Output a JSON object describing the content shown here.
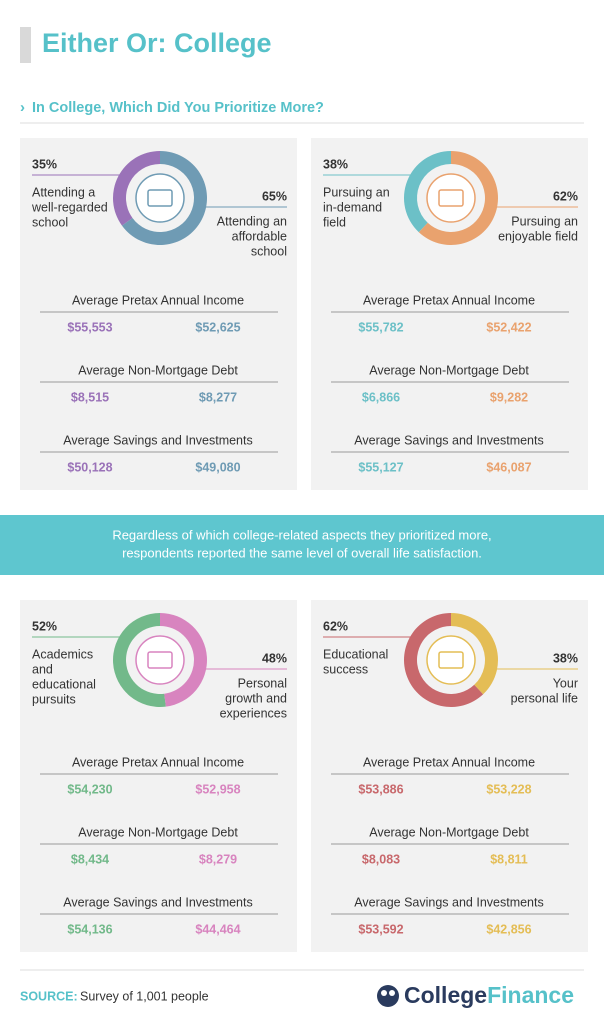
{
  "title": "Either Or: College",
  "subtitle": "In College, Which Did You Prioritize More?",
  "panels": [
    {
      "type": "pie",
      "slices": [
        {
          "value": 35,
          "value_label": "35%",
          "lines": [
            "Attending a",
            "well-regarded",
            "school"
          ],
          "color": "#9a72b8"
        },
        {
          "value": 65,
          "value_label": "65%",
          "lines": [
            "Attending an",
            "affordable",
            "school"
          ],
          "color": "#6f9bb4"
        }
      ],
      "metrics": [
        {
          "label": "Average Pretax Annual Income",
          "values": [
            "$55,553",
            "$52,625"
          ]
        },
        {
          "label": "Average Non-Mortgage Debt",
          "values": [
            "$8,515",
            "$8,277"
          ]
        },
        {
          "label": "Average Savings and Investments",
          "values": [
            "$50,128",
            "$49,080"
          ]
        }
      ]
    },
    {
      "type": "pie",
      "slices": [
        {
          "value": 38,
          "value_label": "38%",
          "lines": [
            "Pursuing an",
            "in-demand",
            "field"
          ],
          "color": "#6cc0c7"
        },
        {
          "value": 62,
          "value_label": "62%",
          "lines": [
            "Pursuing an",
            "enjoyable field"
          ],
          "color": "#e9a26e"
        }
      ],
      "metrics": [
        {
          "label": "Average Pretax Annual Income",
          "values": [
            "$55,782",
            "$52,422"
          ]
        },
        {
          "label": "Average Non-Mortgage Debt",
          "values": [
            "$6,866",
            "$9,282"
          ]
        },
        {
          "label": "Average Savings and Investments",
          "values": [
            "$55,127",
            "$46,087"
          ]
        }
      ]
    },
    {
      "type": "pie",
      "slices": [
        {
          "value": 52,
          "value_label": "52%",
          "lines": [
            "Academics",
            "and",
            "educational",
            "pursuits"
          ],
          "color": "#72b98a"
        },
        {
          "value": 48,
          "value_label": "48%",
          "lines": [
            "Personal",
            "growth and",
            "experiences"
          ],
          "color": "#d884bf"
        }
      ],
      "metrics": [
        {
          "label": "Average Pretax Annual Income",
          "values": [
            "$54,230",
            "$52,958"
          ]
        },
        {
          "label": "Average Non-Mortgage Debt",
          "values": [
            "$8,434",
            "$8,279"
          ]
        },
        {
          "label": "Average Savings and Investments",
          "values": [
            "$54,136",
            "$44,464"
          ]
        }
      ]
    },
    {
      "type": "pie",
      "slices": [
        {
          "value": 62,
          "value_label": "62%",
          "lines": [
            "Educational",
            "success"
          ],
          "color": "#c8686c"
        },
        {
          "value": 38,
          "value_label": "38%",
          "lines": [
            "Your",
            "personal life"
          ],
          "color": "#e4bd55"
        }
      ],
      "metrics": [
        {
          "label": "Average Pretax Annual Income",
          "values": [
            "$53,886",
            "$53,228"
          ]
        },
        {
          "label": "Average Non-Mortgage Debt",
          "values": [
            "$8,083",
            "$8,811"
          ]
        },
        {
          "label": "Average Savings and Investments",
          "values": [
            "$53,592",
            "$42,856"
          ]
        }
      ]
    }
  ],
  "banner": [
    "Regardless of which college-related aspects they prioritized more,",
    "respondents reported the same level of overall life satisfaction."
  ],
  "source_label": "SOURCE:",
  "source_text": "Survey of 1,001 people",
  "logo": [
    "College",
    "Finance"
  ]
}
